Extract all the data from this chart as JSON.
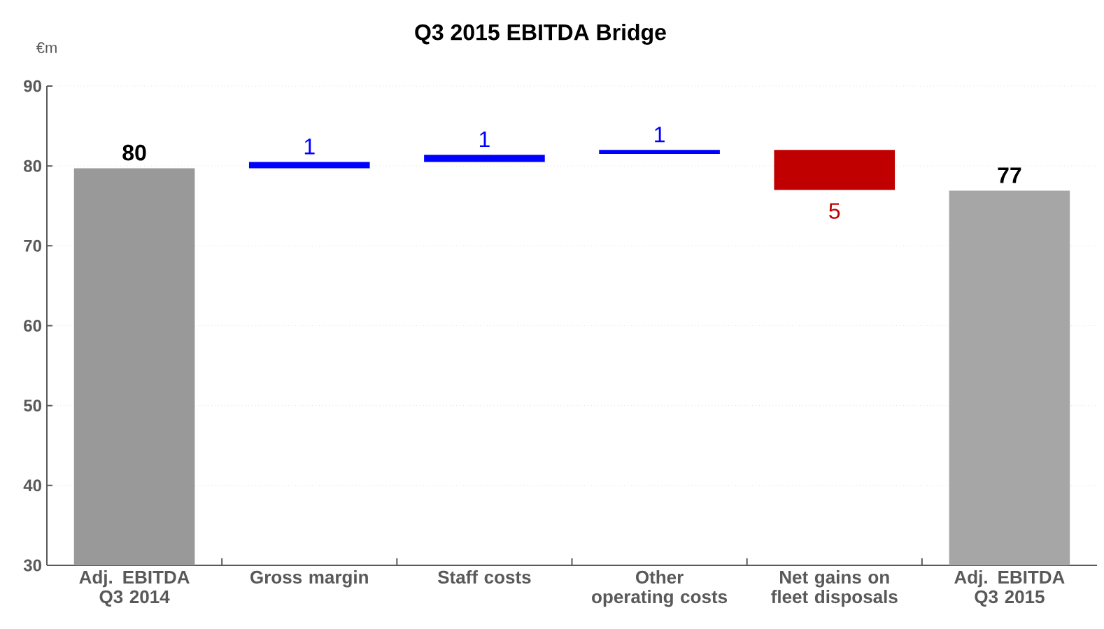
{
  "chart_data": {
    "type": "bar",
    "title": "Q3 2015 EBITDA Bridge",
    "ylabel": "€m",
    "categories": [
      "Adj. EBITDA Q3 2014",
      "Gross margin",
      "Staff costs",
      "Other operating costs",
      "Net gains on fleet disposals",
      "Adj. EBITDA Q3 2015"
    ],
    "base": [
      null,
      79.7,
      80.5,
      81.5,
      82.0,
      null
    ],
    "values": [
      79.7,
      0.8,
      0.9,
      0.5,
      -5.0,
      76.9
    ],
    "value_labels": [
      "80",
      "1",
      "1",
      "1",
      "5",
      "77"
    ],
    "colors": [
      "#999999",
      "#0000ff",
      "#0000ff",
      "#0000ff",
      "#c00000",
      "#a6a6a6"
    ],
    "ylim": [
      30,
      90
    ],
    "yticks": [
      30,
      40,
      50,
      60,
      70,
      80,
      90
    ],
    "grid": "y"
  }
}
